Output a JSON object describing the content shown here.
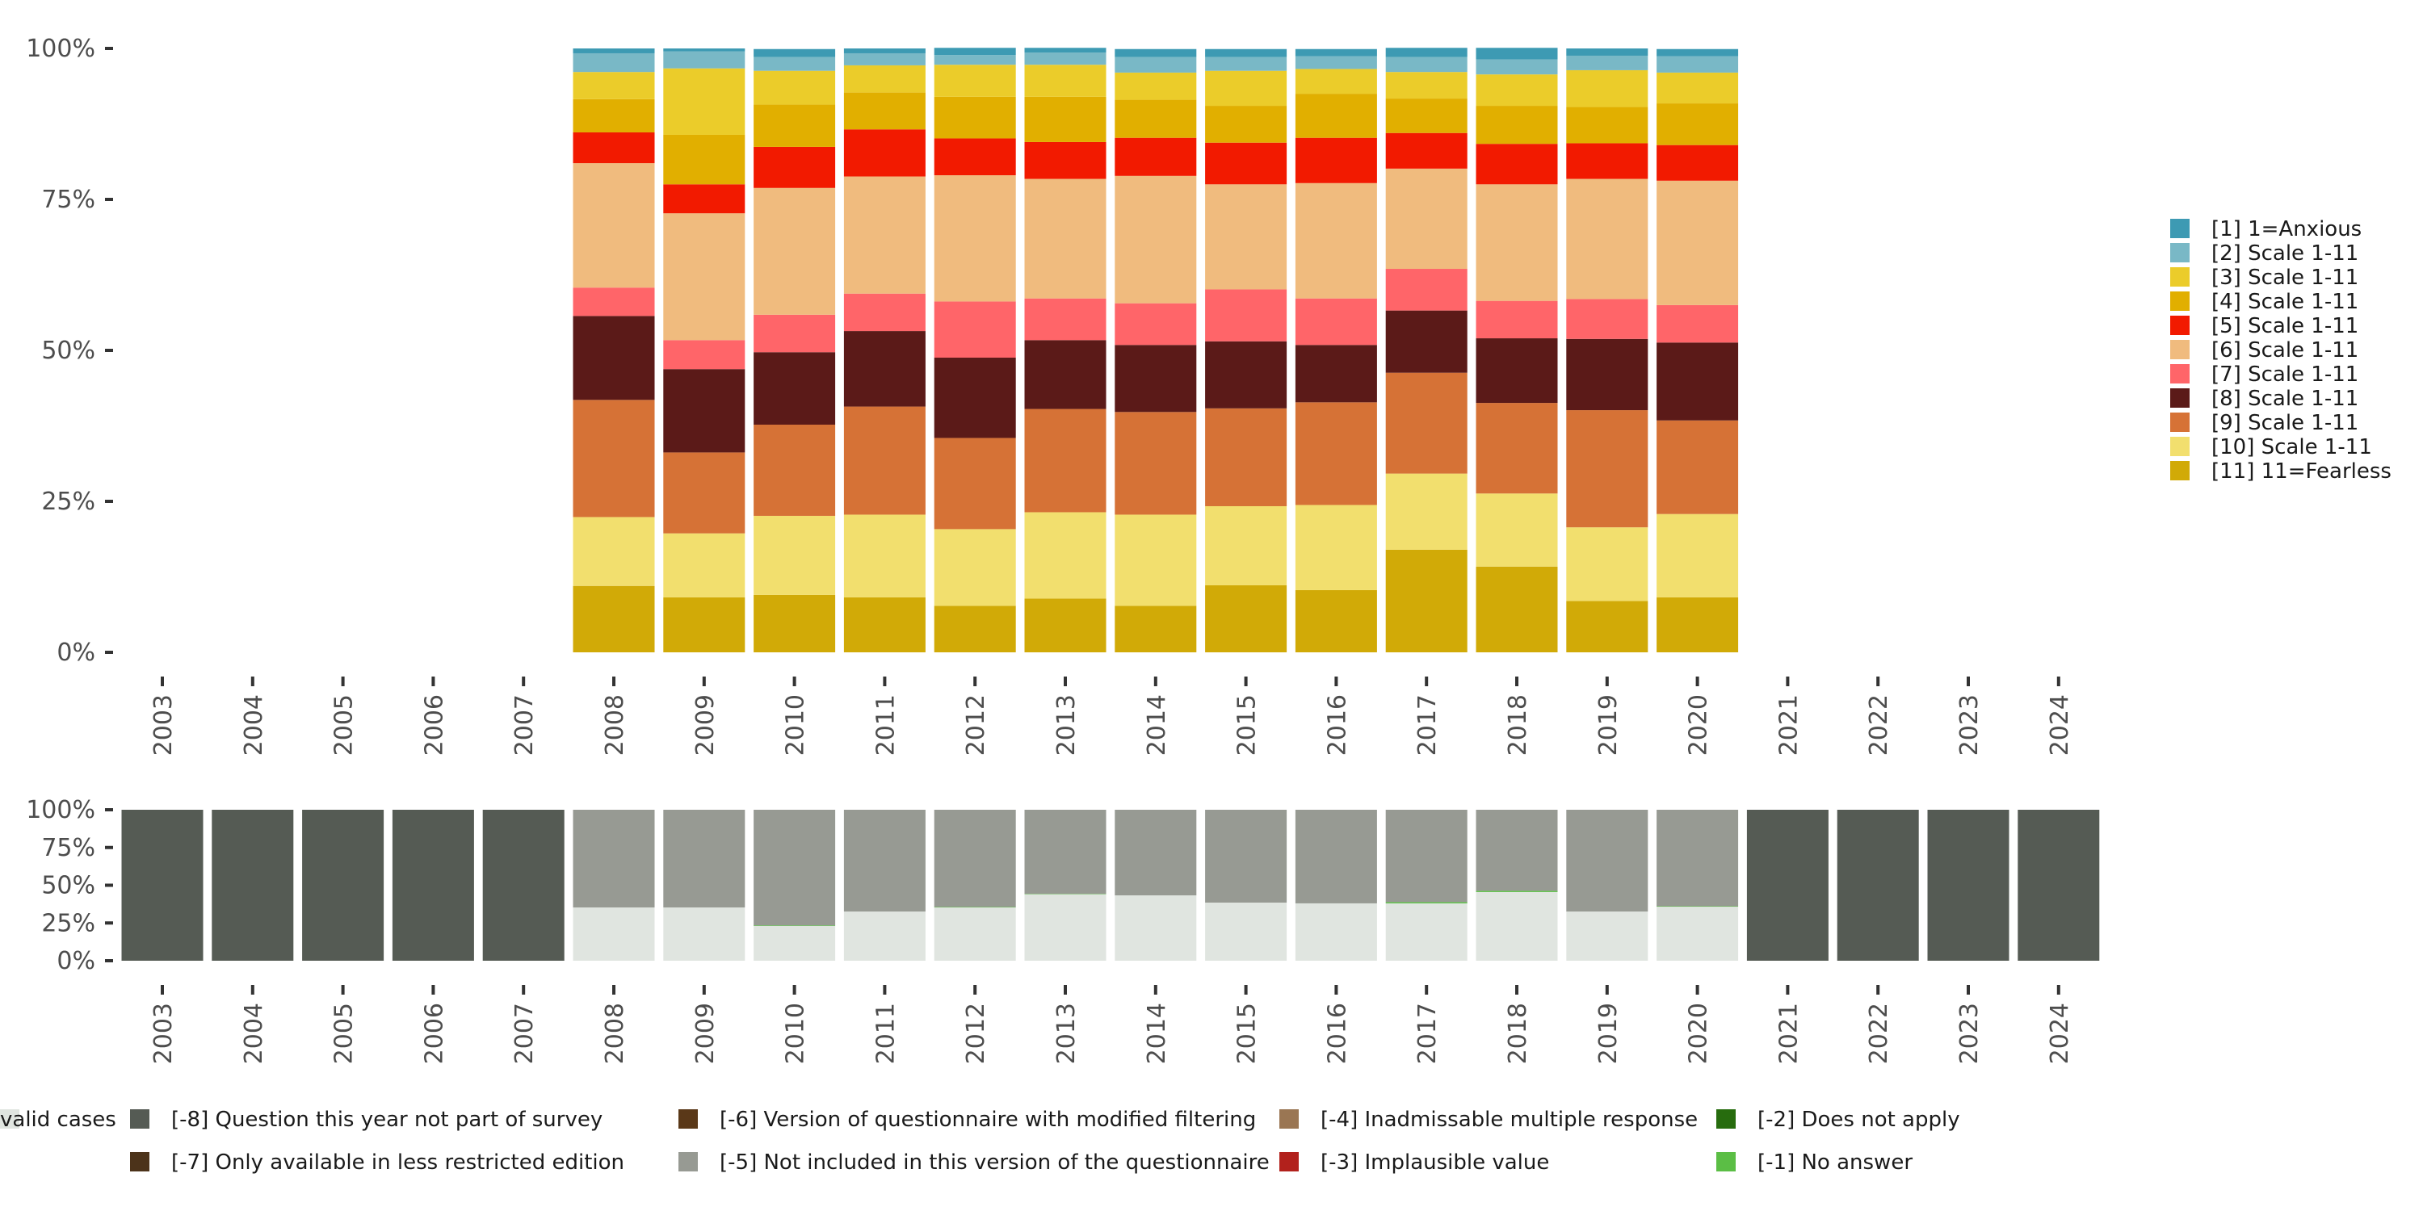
{
  "chart_data": [
    {
      "type": "bar",
      "stacked": true,
      "normalized": true,
      "title": "",
      "xlabel": "",
      "ylabel": "",
      "ylim": [
        0,
        100
      ],
      "yticks": [
        "0%",
        "25%",
        "50%",
        "75%",
        "100%"
      ],
      "categories": [
        "2003",
        "2004",
        "2005",
        "2006",
        "2007",
        "2008",
        "2009",
        "2010",
        "2011",
        "2012",
        "2013",
        "2014",
        "2015",
        "2016",
        "2017",
        "2018",
        "2019",
        "2020",
        "2021",
        "2022",
        "2023",
        "2024"
      ],
      "legend_position": "right",
      "series": [
        {
          "name": "[1] 1=Anxious",
          "color": "#3D9AB3",
          "values": [
            null,
            null,
            null,
            null,
            null,
            0.8,
            0.5,
            1.3,
            0.8,
            1.2,
            0.8,
            1.3,
            1.3,
            1.2,
            1.5,
            1.9,
            1.2,
            1.2,
            null,
            null,
            null,
            null
          ]
        },
        {
          "name": "[2] Scale 1-11",
          "color": "#79B8C6",
          "values": [
            null,
            null,
            null,
            null,
            null,
            3.1,
            2.8,
            2.3,
            2.0,
            1.6,
            2.0,
            2.6,
            2.3,
            2.1,
            2.5,
            2.5,
            2.4,
            2.7,
            null,
            null,
            null,
            null
          ]
        },
        {
          "name": "[3] Scale 1-11",
          "color": "#EBCC2A",
          "values": [
            null,
            null,
            null,
            null,
            null,
            4.5,
            11.0,
            5.6,
            4.5,
            5.3,
            5.3,
            4.5,
            5.8,
            4.1,
            4.4,
            5.2,
            6.1,
            5.1,
            null,
            null,
            null,
            null
          ]
        },
        {
          "name": "[4] Scale 1-11",
          "color": "#E1AF00",
          "values": [
            null,
            null,
            null,
            null,
            null,
            5.5,
            8.2,
            7.0,
            6.1,
            6.9,
            7.5,
            6.3,
            6.1,
            7.3,
            5.7,
            6.3,
            6.0,
            6.9,
            null,
            null,
            null,
            null
          ]
        },
        {
          "name": "[5] Scale 1-11",
          "color": "#F21A00",
          "values": [
            null,
            null,
            null,
            null,
            null,
            5.1,
            4.8,
            6.8,
            7.8,
            6.1,
            6.1,
            6.3,
            6.9,
            7.5,
            5.9,
            6.7,
            5.9,
            5.9,
            null,
            null,
            null,
            null
          ]
        },
        {
          "name": "[6] Scale 1-11",
          "color": "#F0BB7E",
          "values": [
            null,
            null,
            null,
            null,
            null,
            20.6,
            21.0,
            21.0,
            19.4,
            20.9,
            19.8,
            21.1,
            17.4,
            19.1,
            16.6,
            19.3,
            19.9,
            20.6,
            null,
            null,
            null,
            null
          ]
        },
        {
          "name": "[7] Scale 1-11",
          "color": "#FF6569",
          "values": [
            null,
            null,
            null,
            null,
            null,
            4.7,
            4.8,
            6.2,
            6.2,
            9.3,
            6.9,
            6.9,
            8.6,
            7.7,
            6.9,
            6.2,
            6.6,
            6.2,
            null,
            null,
            null,
            null
          ]
        },
        {
          "name": "[8] Scale 1-11",
          "color": "#5B1A18",
          "values": [
            null,
            null,
            null,
            null,
            null,
            13.9,
            13.8,
            12.0,
            12.5,
            13.3,
            11.4,
            11.1,
            11.1,
            9.5,
            10.3,
            10.7,
            11.8,
            12.9,
            null,
            null,
            null,
            null
          ]
        },
        {
          "name": "[9] Scale 1-11",
          "color": "#D67236",
          "values": [
            null,
            null,
            null,
            null,
            null,
            19.4,
            13.4,
            15.1,
            17.9,
            15.1,
            17.1,
            17.0,
            16.2,
            17.0,
            16.7,
            15.0,
            19.4,
            15.5,
            null,
            null,
            null,
            null
          ]
        },
        {
          "name": "[10] Scale 1-11",
          "color": "#F2DF6E",
          "values": [
            null,
            null,
            null,
            null,
            null,
            11.4,
            10.6,
            13.1,
            13.7,
            12.7,
            14.3,
            15.1,
            13.1,
            14.1,
            12.6,
            12.1,
            12.2,
            13.8,
            null,
            null,
            null,
            null
          ]
        },
        {
          "name": "[11] 11=Fearless",
          "color": "#D1AA07",
          "values": [
            null,
            null,
            null,
            null,
            null,
            11.0,
            9.1,
            9.5,
            9.1,
            7.7,
            8.9,
            7.7,
            11.1,
            10.3,
            17.0,
            14.2,
            8.5,
            9.1,
            null,
            null,
            null,
            null
          ]
        }
      ]
    },
    {
      "type": "bar",
      "stacked": true,
      "normalized": true,
      "title": "",
      "xlabel": "",
      "ylabel": "",
      "ylim": [
        0,
        100
      ],
      "yticks": [
        "0%",
        "25%",
        "50%",
        "75%",
        "100%"
      ],
      "categories": [
        "2003",
        "2004",
        "2005",
        "2006",
        "2007",
        "2008",
        "2009",
        "2010",
        "2011",
        "2012",
        "2013",
        "2014",
        "2015",
        "2016",
        "2017",
        "2018",
        "2019",
        "2020",
        "2021",
        "2022",
        "2023",
        "2024"
      ],
      "legend_position": "bottom",
      "series": [
        {
          "name": "valid cases",
          "color": "#E0E5E0",
          "values": [
            0,
            0,
            0,
            0,
            0,
            35.3,
            35.3,
            23.0,
            32.6,
            35.3,
            44.0,
            43.3,
            38.5,
            38.0,
            38.0,
            45.5,
            32.6,
            35.8,
            0,
            0,
            0,
            0
          ]
        },
        {
          "name": "[-1] No answer",
          "color": "#5BBE45",
          "values": [
            0,
            0,
            0,
            0,
            0,
            0,
            0,
            0.4,
            0,
            0.3,
            0.3,
            0,
            0,
            0,
            0.8,
            0.8,
            0,
            0.3,
            0,
            0,
            0,
            0
          ]
        },
        {
          "name": "[-2] Does not apply",
          "color": "#276C0E",
          "values": [
            0,
            0,
            0,
            0,
            0,
            0,
            0,
            0,
            0,
            0,
            0,
            0,
            0,
            0,
            0,
            0,
            0,
            0,
            0,
            0,
            0,
            0
          ]
        },
        {
          "name": "[-3] Implausible value",
          "color": "#B2211C",
          "values": [
            0,
            0,
            0,
            0,
            0,
            0,
            0,
            0,
            0,
            0,
            0,
            0,
            0,
            0,
            0,
            0,
            0,
            0,
            0,
            0,
            0,
            0
          ]
        },
        {
          "name": "[-4] Inadmissable multiple response",
          "color": "#9A7653",
          "values": [
            0,
            0,
            0,
            0,
            0,
            0,
            0,
            0,
            0,
            0,
            0,
            0,
            0,
            0,
            0,
            0,
            0,
            0,
            0,
            0,
            0,
            0
          ]
        },
        {
          "name": "[-5] Not included in this version of the questionnaire",
          "color": "#979A93",
          "values": [
            0,
            0,
            0,
            0,
            0,
            64.7,
            64.7,
            76.6,
            67.4,
            64.4,
            55.7,
            56.7,
            61.5,
            62.0,
            61.2,
            53.7,
            67.4,
            63.9,
            0,
            0,
            0,
            0
          ]
        },
        {
          "name": "[-6] Version of questionnaire with modified filtering",
          "color": "#5A3818",
          "values": [
            0,
            0,
            0,
            0,
            0,
            0,
            0,
            0,
            0,
            0,
            0,
            0,
            0,
            0,
            0,
            0,
            0,
            0,
            0,
            0,
            0,
            0
          ]
        },
        {
          "name": "[-7] Only available in less restricted edition",
          "color": "#4C331A",
          "values": [
            0,
            0,
            0,
            0,
            0,
            0,
            0,
            0,
            0,
            0,
            0,
            0,
            0,
            0,
            0,
            0,
            0,
            0,
            0,
            0,
            0,
            0
          ]
        },
        {
          "name": "[-8] Question this year not part of survey",
          "color": "#555B54",
          "values": [
            100,
            100,
            100,
            100,
            100,
            0,
            0,
            0,
            0,
            0,
            0,
            0,
            0,
            0,
            0,
            0,
            0,
            0,
            100,
            100,
            100,
            100
          ]
        }
      ],
      "legend_order": [
        "[-8] Question this year not part of survey",
        "[-7] Only available in less restricted edition",
        "[-6] Version of questionnaire with modified filtering",
        "[-5] Not included in this version of the questionnaire",
        "[-4] Inadmissable multiple response",
        "[-3] Implausible value",
        "[-2] Does not apply",
        "[-1] No answer",
        "valid cases"
      ]
    }
  ]
}
